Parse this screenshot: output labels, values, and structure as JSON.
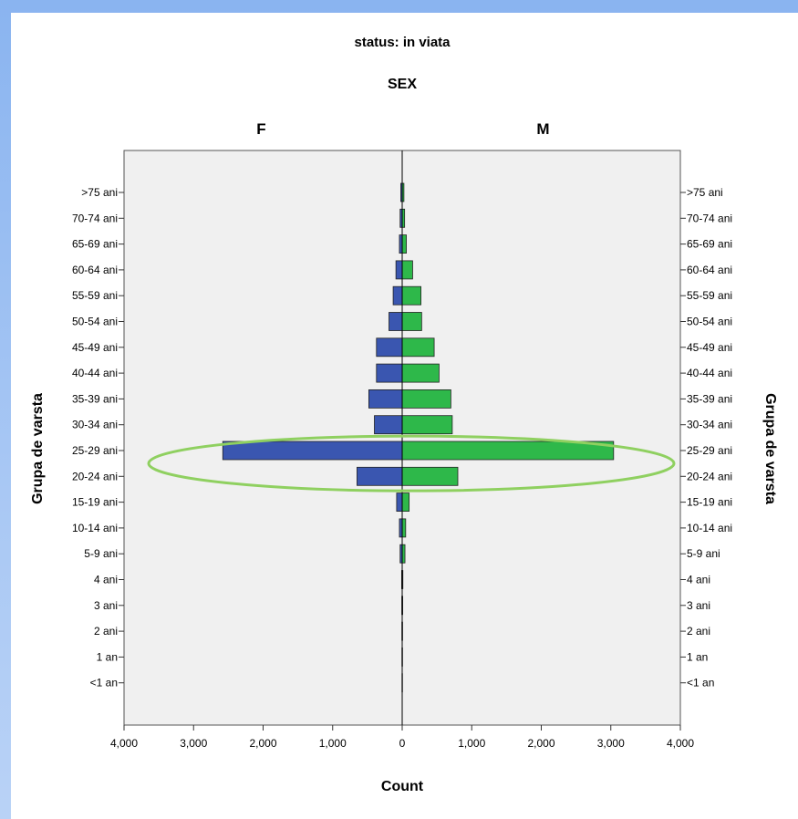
{
  "chart_data": {
    "type": "bar",
    "orientation": "horizontal",
    "layout": "population-pyramid",
    "title": "status: in viata",
    "panel_header": "SEX",
    "categories": [
      ">75 ani",
      "70-74 ani",
      "65-69 ani",
      "60-64 ani",
      "55-59 ani",
      "50-54 ani",
      "45-49 ani",
      "40-44 ani",
      "35-39 ani",
      "30-34 ani",
      "25-29 ani",
      "20-24 ani",
      "15-19 ani",
      "10-14 ani",
      "5-9 ani",
      "4 ani",
      "3 ani",
      "2 ani",
      "1 an",
      "<1 an"
    ],
    "series": [
      {
        "name": "F",
        "color": "#3a56b0",
        "values": [
          20,
          30,
          40,
          90,
          130,
          190,
          370,
          370,
          480,
          400,
          2580,
          650,
          80,
          40,
          30,
          8,
          6,
          5,
          4,
          3
        ]
      },
      {
        "name": "M",
        "color": "#2eb84a",
        "values": [
          25,
          35,
          60,
          150,
          270,
          280,
          460,
          530,
          700,
          720,
          3040,
          800,
          100,
          50,
          40,
          10,
          8,
          6,
          5,
          4
        ]
      }
    ],
    "xlabel": "Count",
    "ylabel": "Grupa de varsta",
    "x_ticks": [
      "4,000",
      "3,000",
      "2,000",
      "1,000",
      "0",
      "1,000",
      "2,000",
      "3,000",
      "4,000"
    ],
    "xlim": [
      -4000,
      4000
    ],
    "grid": false,
    "highlight": {
      "categories": [
        "25-29 ani",
        "20-24 ani"
      ],
      "shape": "ellipse",
      "color": "#8fd060"
    }
  }
}
